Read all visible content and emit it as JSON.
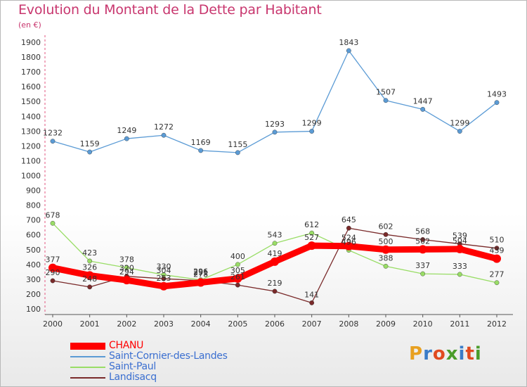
{
  "title": "Evolution du Montant de la Dette par Habitant",
  "subtitle": "(en €)",
  "logo_text": "Proxiti",
  "colors": {
    "title": "#c8366e",
    "logo": [
      "#e8a020",
      "#3a7cc8",
      "#e04a20",
      "#4a9c2a",
      "#3a7cc8",
      "#e04a20",
      "#4a9c2a"
    ]
  },
  "chart_data": {
    "type": "line",
    "title": "Evolution du Montant de la Dette par Habitant",
    "subtitle": "(en €)",
    "xlabel": "",
    "ylabel": "",
    "x": [
      "2000",
      "2001",
      "2002",
      "2003",
      "2004",
      "2005",
      "2006",
      "2007",
      "2008",
      "2009",
      "2010",
      "2011",
      "2012"
    ],
    "yticks": [
      100,
      200,
      300,
      400,
      500,
      600,
      700,
      800,
      900,
      1000,
      1100,
      1200,
      1300,
      1400,
      1500,
      1600,
      1700,
      1800,
      1900
    ],
    "ylim": [
      100,
      1900
    ],
    "grid": false,
    "legend_position": "bottom-left",
    "series": [
      {
        "name": "CHANU",
        "color": "#ff0000",
        "values": [
          377,
          326,
          294,
          253,
          278,
          305,
          419,
          527,
          524,
          500,
          502,
          504,
          439
        ],
        "labels": [
          "377",
          "326",
          "294",
          "253",
          "278",
          "305",
          "419",
          "527",
          "524",
          "500",
          "502",
          "504",
          "439"
        ]
      },
      {
        "name": "Saint-Cornier-des-Landes",
        "color": "#5b9bd5",
        "values": [
          1232,
          1159,
          1249,
          1272,
          1169,
          1155,
          1293,
          1299,
          1843,
          1507,
          1447,
          1299,
          1493
        ],
        "labels": [
          "1232",
          "1159",
          "1249",
          "1272",
          "1169",
          "1155",
          "1293",
          "1299",
          "1843",
          "1507",
          "1447",
          "1299",
          "1493"
        ]
      },
      {
        "name": "Saint-Paul",
        "color": "#99dd66",
        "values": [
          678,
          423,
          378,
          330,
          296,
          400,
          543,
          612,
          496,
          388,
          337,
          333,
          277
        ],
        "labels": [
          "678",
          "423",
          "378",
          "330",
          "296",
          "400",
          "543",
          "612",
          "496",
          "388",
          "337",
          "333",
          "277"
        ]
      },
      {
        "name": "Landisacq",
        "color": "#7a2a2a",
        "values": [
          290,
          248,
          320,
          304,
          291,
          261,
          219,
          141,
          645,
          602,
          568,
          539,
          510
        ],
        "labels": [
          "290",
          "248",
          "320",
          "304",
          "291",
          "261",
          "219",
          "141",
          "645",
          "602",
          "568",
          "539",
          "510"
        ]
      }
    ]
  }
}
